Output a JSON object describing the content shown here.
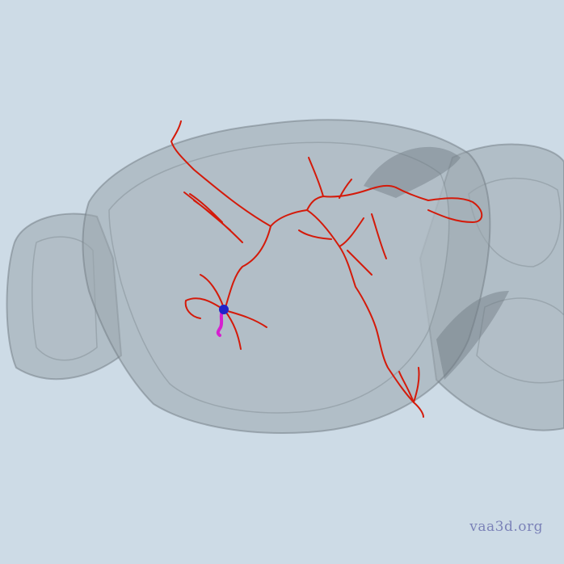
{
  "viewer": {
    "watermark": "vaa3d.org"
  },
  "colors": {
    "background": "#cddbe6",
    "brain_shell": "#9aa5ad",
    "brain_inner": "#b3bec6",
    "brain_edge": "#6f7a82",
    "axon": "#d41a0a",
    "soma": "#1f22c9",
    "dendrite": "#d61fd0",
    "watermark": "#7b82b8"
  },
  "icons": {
    "brain": "mouse-brain-surface-icon",
    "neuron": "neuron-reconstruction-icon"
  }
}
